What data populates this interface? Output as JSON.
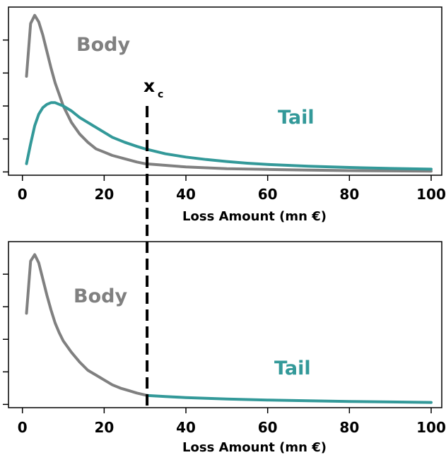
{
  "colors": {
    "body": "#808080",
    "tail": "#339999",
    "axis": "#000000",
    "threshold": "#000000"
  },
  "chart_data": [
    {
      "type": "line",
      "panel": "top",
      "xlabel": "Loss Amount (mn €)",
      "xlim": [
        0,
        102
      ],
      "ylim": [
        -0.02,
        1.0
      ],
      "x_ticks": [
        0,
        20,
        40,
        60,
        80,
        100
      ],
      "y_ticks": [
        0,
        0.2,
        0.4,
        0.6,
        0.8
      ],
      "threshold": {
        "label": "x",
        "subscript": "c",
        "x": 30.5
      },
      "annotations": {
        "body": "Body",
        "tail": "Tail"
      },
      "series": [
        {
          "key": "body",
          "x": [
            1,
            2,
            3,
            4,
            5,
            6,
            7,
            8,
            9,
            10,
            12,
            14,
            16,
            18,
            20,
            22,
            25,
            28,
            30,
            35,
            40,
            50,
            60,
            70,
            80,
            90,
            100
          ],
          "y": [
            0.58,
            0.9,
            0.95,
            0.91,
            0.83,
            0.73,
            0.63,
            0.54,
            0.47,
            0.4,
            0.3,
            0.23,
            0.18,
            0.14,
            0.12,
            0.1,
            0.08,
            0.06,
            0.05,
            0.04,
            0.03,
            0.02,
            0.015,
            0.011,
            0.008,
            0.006,
            0.005
          ]
        },
        {
          "key": "tail",
          "x": [
            1,
            2,
            3,
            4,
            5,
            6,
            7,
            8,
            9,
            10,
            12,
            14,
            16,
            18,
            20,
            22,
            25,
            28,
            30,
            35,
            40,
            45,
            50,
            55,
            60,
            70,
            80,
            90,
            100
          ],
          "y": [
            0.05,
            0.17,
            0.28,
            0.35,
            0.39,
            0.41,
            0.42,
            0.42,
            0.41,
            0.4,
            0.37,
            0.33,
            0.3,
            0.27,
            0.24,
            0.21,
            0.18,
            0.155,
            0.14,
            0.11,
            0.09,
            0.075,
            0.063,
            0.053,
            0.045,
            0.035,
            0.027,
            0.021,
            0.017
          ]
        }
      ]
    },
    {
      "type": "line",
      "panel": "bottom",
      "xlabel": "Loss Amount (mn €)",
      "xlim": [
        0,
        102
      ],
      "ylim": [
        -0.02,
        1.0
      ],
      "x_ticks": [
        0,
        20,
        40,
        60,
        80,
        100
      ],
      "y_ticks": [
        0,
        0.2,
        0.4,
        0.6,
        0.8
      ],
      "annotations": {
        "body": "Body",
        "tail": "Tail"
      },
      "series": [
        {
          "key": "body",
          "x": [
            1,
            2,
            3,
            4,
            5,
            6,
            7,
            8,
            9,
            10,
            12,
            14,
            16,
            18,
            20,
            22,
            24,
            26,
            28,
            30.5
          ],
          "y": [
            0.56,
            0.88,
            0.92,
            0.87,
            0.77,
            0.67,
            0.58,
            0.5,
            0.44,
            0.39,
            0.32,
            0.26,
            0.21,
            0.18,
            0.15,
            0.12,
            0.1,
            0.085,
            0.07,
            0.055
          ]
        },
        {
          "key": "tail",
          "x": [
            30.5,
            35,
            40,
            50,
            60,
            70,
            80,
            90,
            100
          ],
          "y": [
            0.055,
            0.048,
            0.042,
            0.033,
            0.027,
            0.022,
            0.018,
            0.015,
            0.012
          ]
        }
      ]
    }
  ]
}
